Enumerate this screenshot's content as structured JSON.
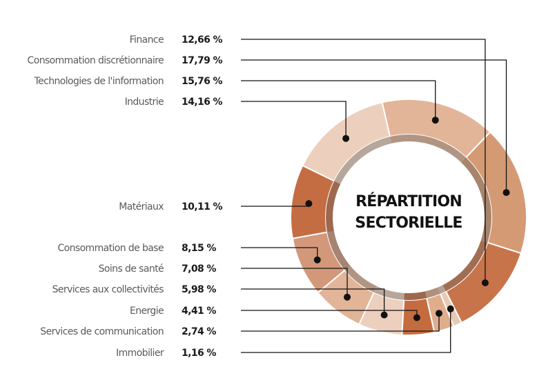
{
  "chart_data": {
    "type": "pie",
    "title": [
      "RÉPARTITION",
      "SECTORIELLE"
    ],
    "slices": [
      {
        "label": "Technologies de l'information",
        "value_text": "15,76 %",
        "value": 15.76,
        "color": "#e2b498"
      },
      {
        "label": "Consommation discrétionnaire",
        "value_text": "17,79 %",
        "value": 17.79,
        "color": "#d49a74"
      },
      {
        "label": "Finance",
        "value_text": "12,66 %",
        "value": 12.66,
        "color": "#c8744a"
      },
      {
        "label": "Immobilier",
        "value_text": "1,16 %",
        "value": 1.16,
        "color": "#e8c9b3"
      },
      {
        "label": "Services de communication",
        "value_text": "2,74 %",
        "value": 2.74,
        "color": "#e0ad8c"
      },
      {
        "label": "Energie",
        "value_text": "4,41 %",
        "value": 4.41,
        "color": "#c46c40"
      },
      {
        "label": "Services aux collectivités",
        "value_text": "5,98 %",
        "value": 5.98,
        "color": "#ecd0bd"
      },
      {
        "label": "Soins de santé",
        "value_text": "7,08 %",
        "value": 7.08,
        "color": "#e2b498"
      },
      {
        "label": "Consommation de base",
        "value_text": "8,15 %",
        "value": 8.15,
        "color": "#d3987a"
      },
      {
        "label": "Matériaux",
        "value_text": "10,11 %",
        "value": 10.11,
        "color": "#c46d43"
      },
      {
        "label": "Industrie",
        "value_text": "14,16 %",
        "value": 14.16,
        "color": "#ecd0bd"
      }
    ],
    "legend_order": [
      "Finance",
      "Consommation discrétionnaire",
      "Technologies de l'information",
      "Industrie",
      "Matériaux",
      "Consommation de base",
      "Soins de santé",
      "Services aux collectivités",
      "Energie",
      "Services de communication",
      "Immobilier"
    ]
  }
}
